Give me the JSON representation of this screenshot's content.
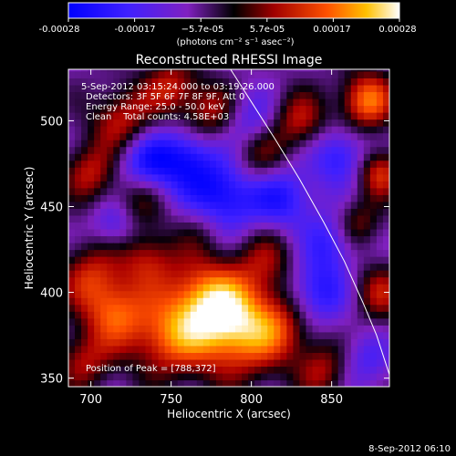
{
  "colorbar": {
    "ticks": [
      "-0.00028",
      "-0.00017",
      "−5.7e-05",
      "5.7e-05",
      "0.00017",
      "0.00028"
    ],
    "units_label": "(photons cm⁻² s⁻¹ asec⁻²)",
    "range": [
      -0.00028,
      0.00028
    ]
  },
  "chart_data": {
    "type": "heatmap",
    "title": "Reconstructed RHESSI Image",
    "xlabel": "Heliocentric X (arcsec)",
    "ylabel": "Heliocentric Y (arcsec)",
    "xlim": [
      686,
      886
    ],
    "ylim": [
      345,
      530
    ],
    "xticks": [
      700,
      750,
      800,
      850
    ],
    "yticks": [
      350,
      400,
      450,
      500
    ],
    "info_lines": [
      "5-Sep-2012 03:15:24.000 to 03:19:26.000",
      "Detectors: 3F 5F 6F 7F 8F 9F, Att 0",
      "Energy Range: 25.0 - 50.0 keV",
      "Clean    Total counts: 4.58E+03"
    ],
    "peak_label": "Position of Peak = [788,372]",
    "peak": [
      788,
      372
    ],
    "limb_curve": [
      [
        787,
        530
      ],
      [
        800,
        511
      ],
      [
        815,
        489
      ],
      [
        830,
        466
      ],
      [
        845,
        441
      ],
      [
        858,
        418
      ],
      [
        870,
        393
      ],
      [
        878,
        375
      ],
      [
        886,
        352
      ]
    ],
    "hot_spots": [
      {
        "x": 790,
        "y": 380,
        "intensity": 1.0,
        "r": 20
      },
      {
        "x": 768,
        "y": 395,
        "intensity": 0.75,
        "r": 18
      },
      {
        "x": 745,
        "y": 372,
        "intensity": 0.6,
        "r": 16
      },
      {
        "x": 715,
        "y": 388,
        "intensity": 0.7,
        "r": 14
      },
      {
        "x": 700,
        "y": 410,
        "intensity": 0.55,
        "r": 14
      },
      {
        "x": 735,
        "y": 420,
        "intensity": 0.5,
        "r": 12
      },
      {
        "x": 810,
        "y": 420,
        "intensity": 0.4,
        "r": 14
      },
      {
        "x": 820,
        "y": 380,
        "intensity": 0.45,
        "r": 14
      },
      {
        "x": 770,
        "y": 440,
        "intensity": 0.35,
        "r": 12
      },
      {
        "x": 730,
        "y": 455,
        "intensity": 0.45,
        "r": 12
      },
      {
        "x": 700,
        "y": 470,
        "intensity": 0.55,
        "r": 12
      },
      {
        "x": 720,
        "y": 500,
        "intensity": 0.6,
        "r": 14
      },
      {
        "x": 750,
        "y": 520,
        "intensity": 0.55,
        "r": 12
      },
      {
        "x": 775,
        "y": 505,
        "intensity": 0.5,
        "r": 12
      },
      {
        "x": 805,
        "y": 480,
        "intensity": 0.45,
        "r": 12
      },
      {
        "x": 830,
        "y": 500,
        "intensity": 0.55,
        "r": 12
      },
      {
        "x": 872,
        "y": 512,
        "intensity": 0.85,
        "r": 12
      },
      {
        "x": 880,
        "y": 470,
        "intensity": 0.65,
        "r": 10
      },
      {
        "x": 866,
        "y": 440,
        "intensity": 0.45,
        "r": 10
      },
      {
        "x": 845,
        "y": 355,
        "intensity": 0.5,
        "r": 12
      },
      {
        "x": 880,
        "y": 400,
        "intensity": 0.5,
        "r": 12
      },
      {
        "x": 695,
        "y": 360,
        "intensity": 0.5,
        "r": 12
      }
    ],
    "cold_spots": [
      {
        "x": 735,
        "y": 475,
        "intensity": -0.7,
        "r": 14
      },
      {
        "x": 780,
        "y": 455,
        "intensity": -0.8,
        "r": 16
      },
      {
        "x": 820,
        "y": 455,
        "intensity": -0.55,
        "r": 14
      },
      {
        "x": 840,
        "y": 400,
        "intensity": -0.6,
        "r": 14
      },
      {
        "x": 855,
        "y": 480,
        "intensity": -0.55,
        "r": 12
      },
      {
        "x": 760,
        "y": 480,
        "intensity": -0.5,
        "r": 12
      },
      {
        "x": 715,
        "y": 440,
        "intensity": -0.4,
        "r": 10
      },
      {
        "x": 800,
        "y": 500,
        "intensity": -0.4,
        "r": 12
      },
      {
        "x": 850,
        "y": 430,
        "intensity": -0.45,
        "r": 12
      },
      {
        "x": 870,
        "y": 360,
        "intensity": -0.35,
        "r": 12
      }
    ]
  },
  "footer": {
    "date_label": "8-Sep-2012 06:10"
  }
}
